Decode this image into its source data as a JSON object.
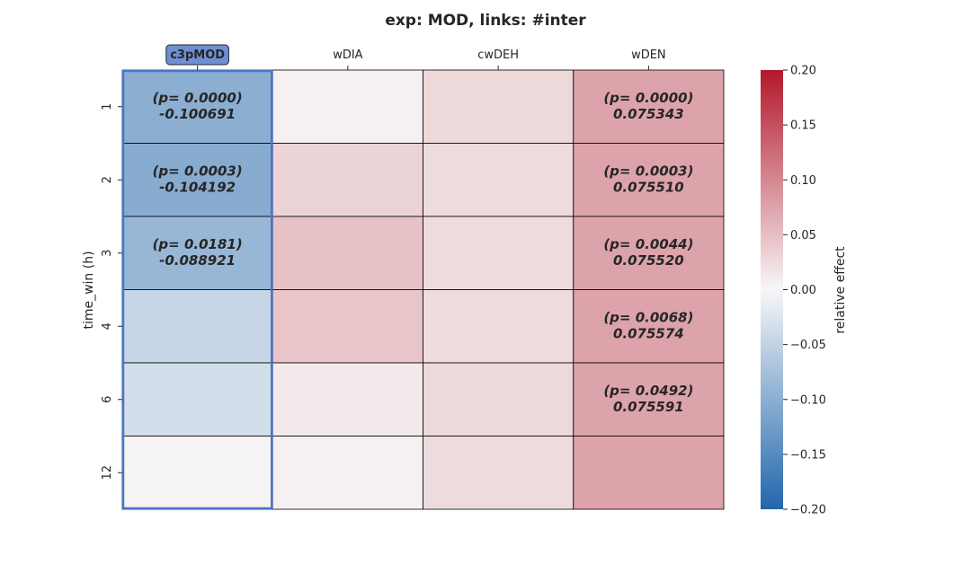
{
  "chart_data": {
    "type": "heatmap",
    "title": "exp: MOD, links: #inter",
    "xlabel": "",
    "ylabel": "time_win (h)",
    "columns": [
      "c3pMOD",
      "wDIA",
      "cwDEH",
      "wDEN"
    ],
    "highlighted_column": "c3pMOD",
    "rows": [
      "1",
      "2",
      "3",
      "4",
      "6",
      "12"
    ],
    "values": [
      [
        -0.100691,
        0.005,
        0.028,
        0.075343
      ],
      [
        -0.104192,
        0.032,
        0.025,
        0.07551
      ],
      [
        -0.088921,
        0.048,
        0.025,
        0.07552
      ],
      [
        -0.045,
        0.045,
        0.024,
        0.075574
      ],
      [
        -0.035,
        0.012,
        0.028,
        0.075591
      ],
      [
        0.004,
        0.006,
        0.025,
        0.075
      ]
    ],
    "annotations": [
      [
        "(p= 0.0000)\n-0.100691",
        "",
        "",
        "(p= 0.0000)\n0.075343"
      ],
      [
        "(p= 0.0003)\n-0.104192",
        "",
        "",
        "(p= 0.0003)\n0.075510"
      ],
      [
        "(p= 0.0181)\n-0.088921",
        "",
        "",
        "(p= 0.0044)\n0.075520"
      ],
      [
        "",
        "",
        "",
        "(p= 0.0068)\n0.075574"
      ],
      [
        "",
        "",
        "",
        "(p= 0.0492)\n0.075591"
      ],
      [
        "",
        "",
        "",
        ""
      ]
    ],
    "colorbar": {
      "label": "relative effect",
      "vmin": -0.2,
      "vmax": 0.2,
      "ticks": [
        0.2,
        0.15,
        0.1,
        0.05,
        0.0,
        -0.05,
        -0.1,
        -0.15,
        -0.2
      ],
      "tick_labels": [
        "0.20",
        "0.15",
        "0.10",
        "0.05",
        "0.00",
        "−0.05",
        "−0.10",
        "−0.15",
        "−0.20"
      ],
      "colormap": [
        "#2166ac",
        "#f7f7f7",
        "#b2182b"
      ]
    },
    "colors": {
      "highlight_border": "#4a76c9",
      "highlight_badge": "#6f8fd3"
    }
  }
}
